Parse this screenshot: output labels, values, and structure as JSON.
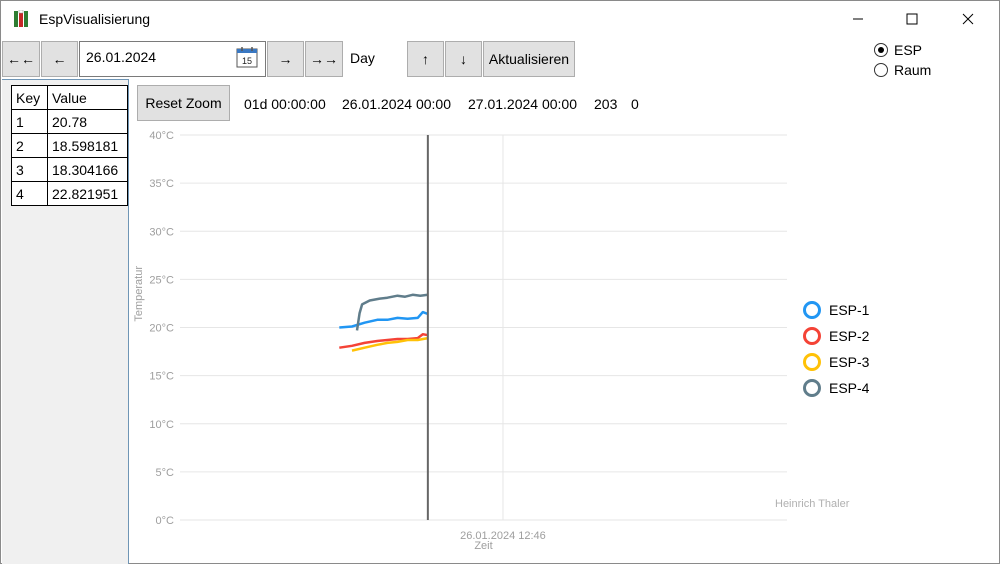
{
  "window": {
    "title": "EspVisualisierung",
    "controls": {
      "minimize": "—",
      "maximize": "☐",
      "close": "✕"
    }
  },
  "toolbar": {
    "first_label": "←←",
    "prev_label": "←",
    "date_value": "26.01.2024",
    "calendar_day": "15",
    "next_label": "→",
    "last_label": "→→",
    "mode_label": "Day",
    "up_label": "↑",
    "down_label": "↓",
    "refresh_label": "Aktualisieren"
  },
  "source": {
    "options": [
      {
        "label": "ESP",
        "checked": true
      },
      {
        "label": "Raum",
        "checked": false
      }
    ]
  },
  "grid": {
    "headers": [
      "Key",
      "Value"
    ],
    "rows": [
      [
        "1",
        "20.78"
      ],
      [
        "2",
        "18.598181"
      ],
      [
        "3",
        "18.304166"
      ],
      [
        "4",
        "22.821951"
      ]
    ]
  },
  "info": {
    "reset_label": "Reset Zoom",
    "duration": "01d 00:00:00",
    "start": "26.01.2024 00:00",
    "end": "27.01.2024 00:00",
    "count": "203",
    "extra": "0"
  },
  "chart_data": {
    "type": "line",
    "ylabel": "Temperatur",
    "xlabel": "Zeit",
    "x_tick_label": "26.01.2024 12:46",
    "yticks": [
      "0°C",
      "5°C",
      "10°C",
      "15°C",
      "20°C",
      "25°C",
      "30°C",
      "35°C",
      "40°C"
    ],
    "ylim": [
      0,
      40
    ],
    "xlim_hours": [
      0,
      24
    ],
    "cursor_hour": 9.8,
    "grid": true,
    "legend_position": "right",
    "series": [
      {
        "name": "ESP-1",
        "color": "#2196F3",
        "x": [
          6.3,
          6.8,
          7.3,
          7.8,
          8.2,
          8.6,
          9.0,
          9.4,
          9.6,
          9.8
        ],
        "y": [
          20.0,
          20.1,
          20.5,
          20.8,
          20.8,
          21.0,
          20.9,
          21.0,
          21.6,
          21.4
        ]
      },
      {
        "name": "ESP-2",
        "color": "#F44336",
        "x": [
          6.3,
          6.8,
          7.3,
          7.8,
          8.2,
          8.6,
          9.0,
          9.4,
          9.6,
          9.8
        ],
        "y": [
          17.9,
          18.1,
          18.4,
          18.6,
          18.7,
          18.8,
          18.8,
          18.9,
          19.3,
          19.2
        ]
      },
      {
        "name": "ESP-3",
        "color": "#FFC107",
        "x": [
          6.8,
          7.3,
          7.8,
          8.2,
          8.6,
          9.0,
          9.4,
          9.8
        ],
        "y": [
          17.6,
          17.9,
          18.2,
          18.4,
          18.5,
          18.7,
          18.7,
          18.9
        ]
      },
      {
        "name": "ESP-4",
        "color": "#607D8B",
        "x": [
          7.0,
          7.1,
          7.2,
          7.5,
          7.9,
          8.2,
          8.6,
          8.9,
          9.2,
          9.5,
          9.8
        ],
        "y": [
          19.7,
          21.5,
          22.4,
          22.8,
          23.0,
          23.1,
          23.3,
          23.2,
          23.4,
          23.3,
          23.4
        ]
      }
    ]
  },
  "watermark": "Heinrich Thaler"
}
